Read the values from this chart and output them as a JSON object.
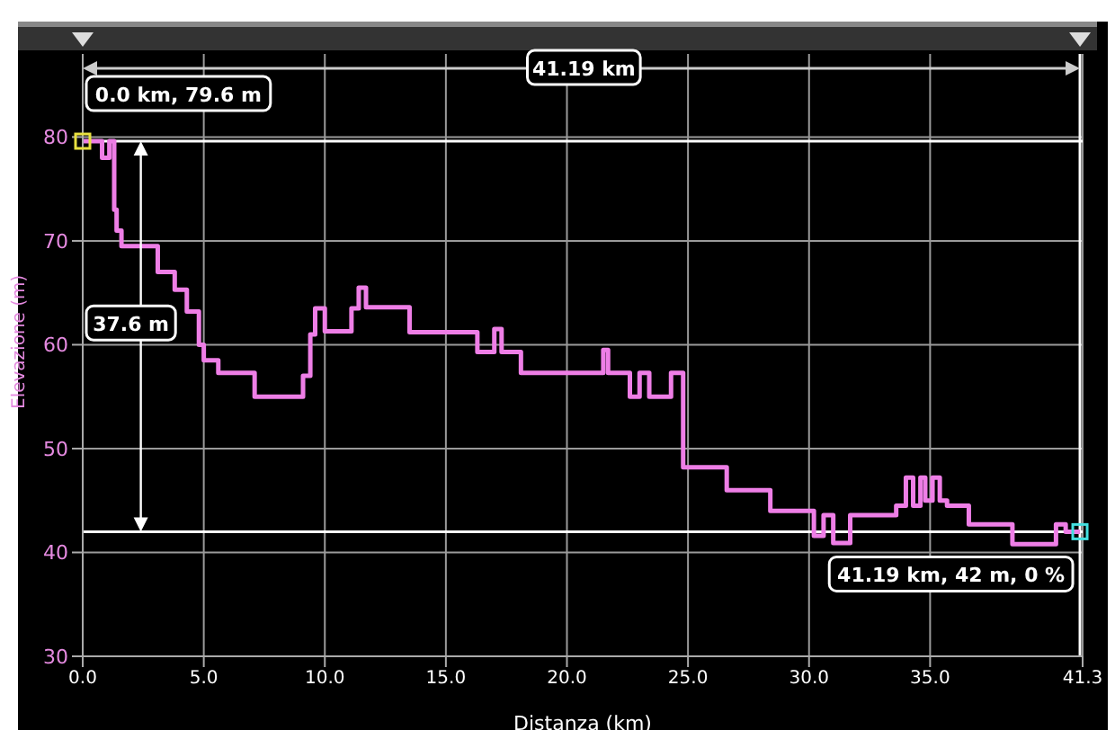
{
  "chart_data": {
    "type": "step",
    "xlabel": "Distanza (km)",
    "ylabel": "Elevazione (m)",
    "x": [
      0,
      0.8,
      1.1,
      1.3,
      1.4,
      1.6,
      1.8,
      3.1,
      3.8,
      4.3,
      4.8,
      5.0,
      5.6,
      7.1,
      9.1,
      9.4,
      9.6,
      10.0,
      10.2,
      11.1,
      11.4,
      11.7,
      13.5,
      16.3,
      17.0,
      17.3,
      18.1,
      21.5,
      21.7,
      22.6,
      23.0,
      23.4,
      23.7,
      24.3,
      24.8,
      26.6,
      28.4,
      30.2,
      30.6,
      31.0,
      31.3,
      31.7,
      33.6,
      34.0,
      34.3,
      34.6,
      34.8,
      35.1,
      35.4,
      35.7,
      36.6,
      38.4,
      40.2,
      40.6,
      41.19
    ],
    "series": [
      {
        "color": "#ee7ee6",
        "values": [
          79.6,
          78,
          79.6,
          73,
          71,
          69.5,
          69.5,
          67,
          65.3,
          63.2,
          60,
          58.5,
          57.3,
          55,
          57,
          61,
          63.5,
          61.3,
          61.3,
          63.5,
          65.5,
          63.6,
          61.2,
          59.3,
          61.5,
          59.3,
          57.3,
          59.5,
          57.3,
          55,
          57.3,
          55,
          55,
          57.3,
          48.2,
          46,
          44,
          41.6,
          43.6,
          40.9,
          40.9,
          43.6,
          44.5,
          47.2,
          44.5,
          47.2,
          45,
          47.2,
          45,
          44.5,
          42.7,
          40.8,
          42.7,
          42,
          42
        ]
      }
    ],
    "xlim": [
      0,
      41.3
    ],
    "ylim": [
      30,
      88
    ],
    "xticks": [
      {
        "value": 0,
        "label": "0.0"
      },
      {
        "value": 5,
        "label": "5.0"
      },
      {
        "value": 10,
        "label": "10.0"
      },
      {
        "value": 15,
        "label": "15.0"
      },
      {
        "value": 20,
        "label": "20.0"
      },
      {
        "value": 25,
        "label": "25.0"
      },
      {
        "value": 30,
        "label": "30.0"
      },
      {
        "value": 35,
        "label": "35.0"
      },
      41.3
    ],
    "yticks": [
      30,
      40,
      50,
      60,
      70,
      80
    ],
    "grid": true,
    "legend": false,
    "marker": "none",
    "line_style": "solid",
    "ref_lines": [
      {
        "axis": "y",
        "value": 79.6,
        "color": "#ffffff"
      },
      {
        "axis": "y",
        "value": 42,
        "color": "#ffffff"
      },
      {
        "axis": "x",
        "value": 41.19,
        "color": "#ffffff"
      }
    ],
    "annotations": [
      {
        "text": "0.0 km, 79.6 m",
        "x": 0,
        "y": 79.6
      },
      {
        "text": "41.19 km, 42 m, 0 %",
        "x": 41.19,
        "y": 42
      },
      "41.19 km",
      "37.6 m"
    ]
  }
}
